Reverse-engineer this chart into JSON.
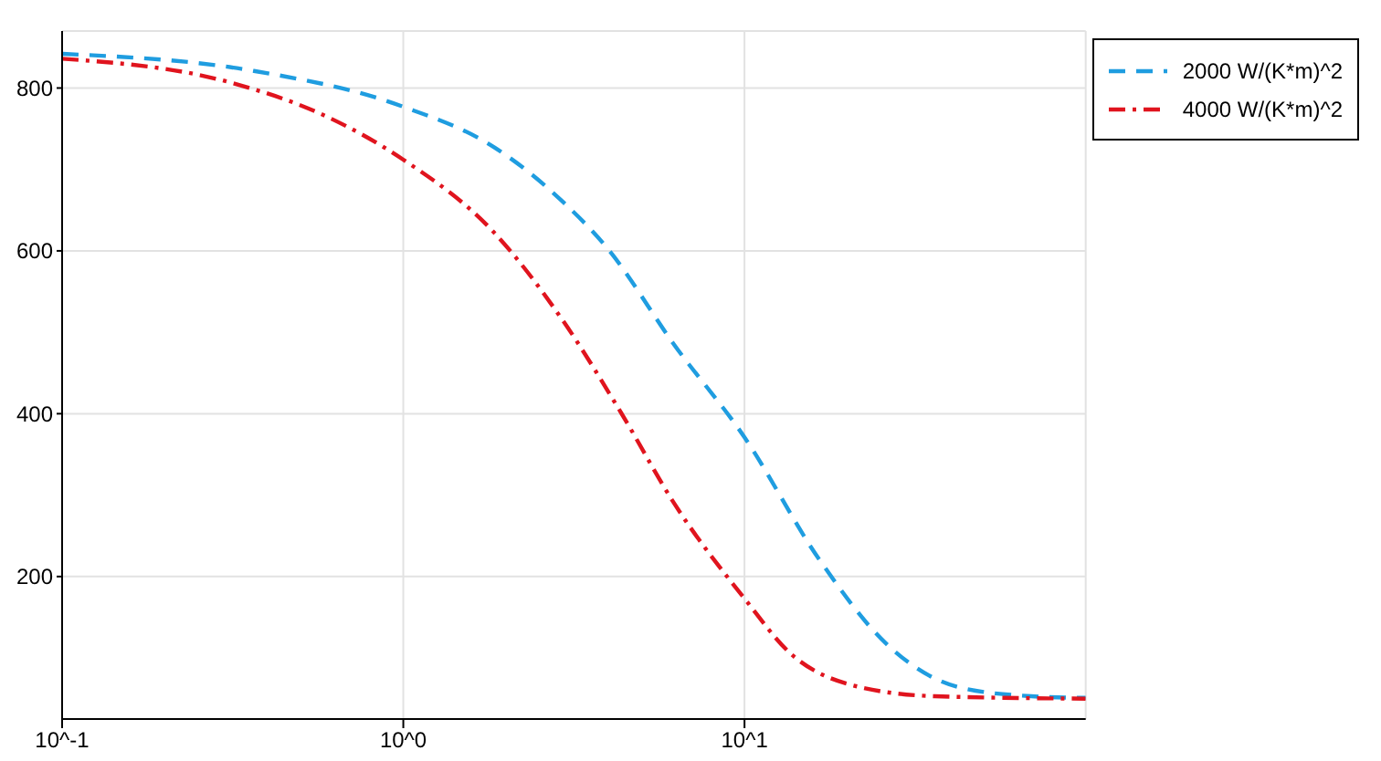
{
  "chart_data": {
    "type": "line",
    "xlim": [
      0.1,
      100
    ],
    "ylim": [
      25,
      870
    ],
    "log": "x",
    "grid": true,
    "legend": "top right",
    "marker": "none",
    "xticks": [
      {
        "value": 0.1,
        "label": "10^-1"
      },
      {
        "value": 1,
        "label": "10^0"
      },
      {
        "value": 10,
        "label": "10^1"
      }
    ],
    "yticks": [
      200,
      400,
      600,
      800
    ],
    "series": [
      {
        "name": "2000 W/(K*m)^2",
        "color": "#1f9de0",
        "line_style": "dashed",
        "x": [
          0.1,
          0.365,
          1,
          1.85,
          2.94,
          3.95,
          6.24,
          10,
          16.5,
          26.1,
          42.5,
          69.3,
          100
        ],
        "values": [
          842,
          821,
          777,
          727,
          660,
          604,
          484,
          371,
          222,
          117,
          64,
          53,
          51
        ]
      },
      {
        "name": "4000 W/(K*m)^2",
        "color": "#e0141e",
        "line_style": "dashdot",
        "x": [
          0.1,
          0.31,
          0.596,
          1,
          1.85,
          2.94,
          4.35,
          6.24,
          10,
          13.6,
          20.1,
          36.1,
          100
        ],
        "values": [
          836,
          807,
          765,
          712,
          622,
          514,
          401,
          289,
          173,
          106,
          68,
          53,
          50
        ]
      }
    ]
  }
}
